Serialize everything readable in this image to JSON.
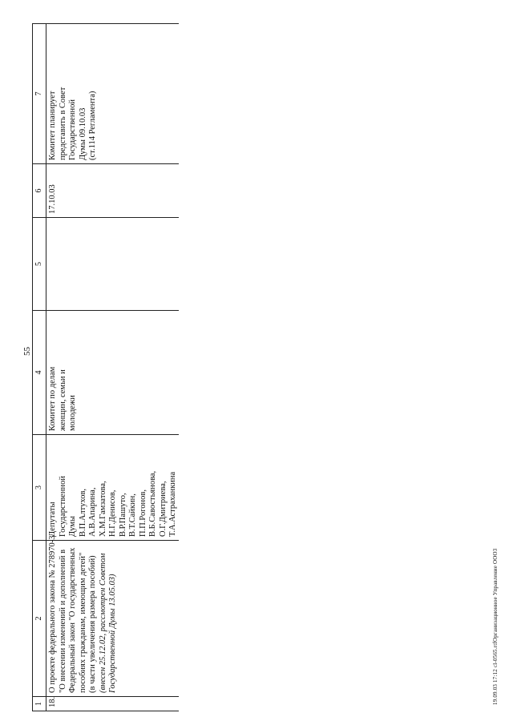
{
  "page_number": "55",
  "footer_text": "19.09.03 17:12 cl-0565.rtfОрганизационное Управление ООО3",
  "table": {
    "headers": [
      "1",
      "2",
      "3",
      "4",
      "5",
      "6",
      "7"
    ],
    "row": {
      "number": "18.",
      "description_lines": [
        "О проекте федерального закона № 278970-3",
        "\"О внесении изменений и дополнений в",
        "Федеральный закон \"О государственных",
        "пособиях гражданам, имеющим детей\"",
        "(в части увеличения размера пособий)"
      ],
      "description_italic_lines": [
        "(внесен 25.12.02, рассмотрен Советом",
        "Государственной Думы 13.05.03)"
      ],
      "initiators_lines": [
        "Депутаты",
        "Государственной",
        "Думы",
        "В.П.Алтухов,",
        "А.В.Апарина,",
        "Х.М.Гамзатова,",
        "Н.Г.Денисов,",
        "В.Р.Пашуто,",
        "В.Т.Сайкин,",
        "П.П.Рогонов,",
        "В.Б.Савостьянова,",
        "О.Г.Дмитриева,",
        "Т.А.Астраханкина"
      ],
      "committee_lines": [
        "Комитет по делам",
        "женщин, семьи и",
        "молодежи"
      ],
      "col5": "",
      "date": "17.10.03",
      "note_lines": [
        "Комитет планирует",
        "представить в Совет",
        "Государственной",
        "Думы 09.10.03",
        "(ст.114 Регламента)"
      ]
    }
  }
}
